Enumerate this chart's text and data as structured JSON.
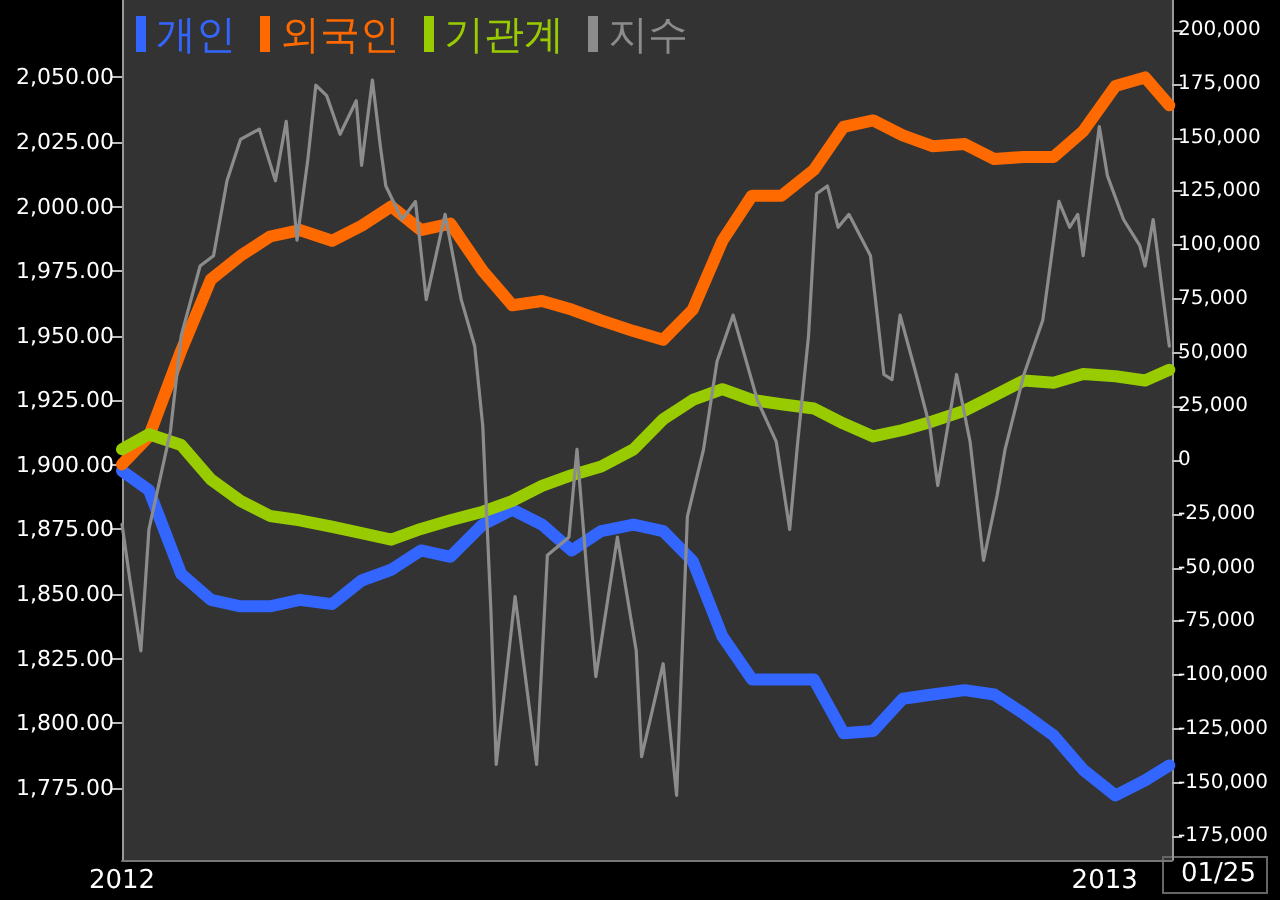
{
  "chart_data": {
    "type": "line",
    "x": [
      "2012-01-02",
      "2012-01-12",
      "2012-01-24",
      "2012-02-04",
      "2012-02-15",
      "2012-02-26",
      "2012-03-08",
      "2012-03-20",
      "2012-03-31",
      "2012-04-11",
      "2012-04-22",
      "2012-05-03",
      "2012-05-15",
      "2012-05-26",
      "2012-06-06",
      "2012-06-17",
      "2012-06-28",
      "2012-07-10",
      "2012-07-21",
      "2012-08-01",
      "2012-08-12",
      "2012-08-23",
      "2012-09-03",
      "2012-09-15",
      "2012-09-26",
      "2012-10-07",
      "2012-10-18",
      "2012-10-29",
      "2012-11-10",
      "2012-11-21",
      "2012-12-02",
      "2012-12-13",
      "2012-12-24",
      "2013-01-05",
      "2013-01-16",
      "2013-01-25"
    ],
    "series": [
      {
        "name": "개인",
        "color": "#3366ff",
        "axis": "y2",
        "values": [
          -5000,
          -14000,
          -53000,
          -65000,
          -68000,
          -68000,
          -65000,
          -67000,
          -56000,
          -51000,
          -42000,
          -45000,
          -30000,
          -23000,
          -30000,
          -42000,
          -33000,
          -30000,
          -33000,
          -47000,
          -82000,
          -102000,
          -102000,
          -102000,
          -127000,
          -126000,
          -111000,
          -109000,
          -107000,
          -109000,
          -118000,
          -128000,
          -144000,
          -156000,
          -149000,
          -142000
        ]
      },
      {
        "name": "외국인",
        "color": "#ff6a00",
        "axis": "y2",
        "values": [
          -2000,
          11000,
          51000,
          84000,
          95000,
          104000,
          107000,
          102000,
          109000,
          118000,
          107000,
          110000,
          88000,
          72000,
          74000,
          70000,
          65000,
          60000,
          56000,
          70000,
          102000,
          123000,
          123000,
          135000,
          155000,
          158000,
          151000,
          146000,
          147000,
          140000,
          141000,
          141000,
          153000,
          174000,
          178000,
          165000
        ]
      },
      {
        "name": "기관계",
        "color": "#99cc00",
        "axis": "y2",
        "values": [
          5000,
          12000,
          7000,
          -9000,
          -19000,
          -26000,
          -28000,
          -31000,
          -34000,
          -37000,
          -32000,
          -28000,
          -24000,
          -19000,
          -12000,
          -7000,
          -3000,
          5000,
          19000,
          28000,
          33000,
          28000,
          26000,
          24000,
          17000,
          11000,
          14000,
          18000,
          23000,
          30000,
          37000,
          36000,
          40000,
          39000,
          37000,
          42000
        ]
      },
      {
        "name": "지수",
        "color": "#8c8c8c",
        "axis": "y",
        "x": [
          "2012-01-02",
          "2012-01-05",
          "2012-01-09",
          "2012-01-12",
          "2012-01-16",
          "2012-01-20",
          "2012-01-24",
          "2012-01-31",
          "2012-02-05",
          "2012-02-10",
          "2012-02-15",
          "2012-02-22",
          "2012-02-28",
          "2012-03-03",
          "2012-03-07",
          "2012-03-11",
          "2012-03-14",
          "2012-03-18",
          "2012-03-23",
          "2012-03-29",
          "2012-03-31",
          "2012-04-04",
          "2012-04-07",
          "2012-04-09",
          "2012-04-15",
          "2012-04-20",
          "2012-04-24",
          "2012-05-01",
          "2012-05-07",
          "2012-05-12",
          "2012-05-15",
          "2012-05-18",
          "2012-05-20",
          "2012-05-27",
          "2012-06-04",
          "2012-06-08",
          "2012-06-16",
          "2012-06-19",
          "2012-06-23",
          "2012-06-26",
          "2012-07-04",
          "2012-07-11",
          "2012-07-13",
          "2012-07-21",
          "2012-07-26",
          "2012-07-30",
          "2012-08-05",
          "2012-08-10",
          "2012-08-16",
          "2012-08-25",
          "2012-09-01",
          "2012-09-06",
          "2012-09-09",
          "2012-09-13",
          "2012-09-16",
          "2012-09-20",
          "2012-09-24",
          "2012-09-28",
          "2012-10-06",
          "2012-10-11",
          "2012-10-14",
          "2012-10-17",
          "2012-10-23",
          "2012-10-28",
          "2012-10-31",
          "2012-11-07",
          "2012-11-12",
          "2012-11-17",
          "2012-11-22",
          "2012-11-25",
          "2012-12-02",
          "2012-12-09",
          "2012-12-15",
          "2012-12-19",
          "2012-12-22",
          "2012-12-24",
          "2012-12-30",
          "2013-01-02",
          "2013-01-08",
          "2013-01-14",
          "2013-01-16",
          "2013-01-19",
          "2013-01-25"
        ],
        "values": [
          1877,
          1855,
          1828,
          1875,
          1894,
          1913,
          1950,
          1977,
          1981,
          2010,
          2026,
          2030,
          2010,
          2033,
          1987,
          2018,
          2047,
          2043,
          2028,
          2041,
          2016,
          2049,
          2023,
          2008,
          1995,
          2002,
          1964,
          1997,
          1964,
          1946,
          1915,
          1844,
          1784,
          1849,
          1784,
          1865,
          1872,
          1906,
          1854,
          1818,
          1872,
          1828,
          1787,
          1823,
          1772,
          1880,
          1906,
          1940,
          1958,
          1925,
          1909,
          1875,
          1909,
          1950,
          2005,
          2008,
          1992,
          1997,
          1981,
          1935,
          1933,
          1958,
          1935,
          1915,
          1892,
          1935,
          1909,
          1863,
          1888,
          1906,
          1935,
          1956,
          2002,
          1992,
          1997,
          1981,
          2031,
          2012,
          1995,
          1985,
          1977,
          1995,
          1946
        ]
      }
    ],
    "xlim": [
      "2012-01-02",
      "2013-01-26"
    ],
    "xticks": [
      {
        "value": "2012-01-02",
        "label": "2012"
      },
      {
        "value": "2013-01-01",
        "label": "2013"
      }
    ],
    "ylim": [
      1747,
      2080
    ],
    "yticks": [
      {
        "value": 1775,
        "label": "1,775.00"
      },
      {
        "value": 1800,
        "label": "1,800.00"
      },
      {
        "value": 1825,
        "label": "1,825.00"
      },
      {
        "value": 1850,
        "label": "1,850.00"
      },
      {
        "value": 1875,
        "label": "1,875.00"
      },
      {
        "value": 1900,
        "label": "1,900.00"
      },
      {
        "value": 1925,
        "label": "1,925.00"
      },
      {
        "value": 1950,
        "label": "1,950.00"
      },
      {
        "value": 1975,
        "label": "1,975.00"
      },
      {
        "value": 2000,
        "label": "2,000.00"
      },
      {
        "value": 2025,
        "label": "2,025.00"
      },
      {
        "value": 2050,
        "label": "2,050.00"
      }
    ],
    "y2lim": [
      -186000,
      214000
    ],
    "y2ticks": [
      {
        "value": -175000,
        "label": "-175,000"
      },
      {
        "value": -150000,
        "label": "-150,000"
      },
      {
        "value": -125000,
        "label": "-125,000"
      },
      {
        "value": -100000,
        "label": "-100,000"
      },
      {
        "value": -75000,
        "label": "-75,000"
      },
      {
        "value": -50000,
        "label": "-50,000"
      },
      {
        "value": -25000,
        "label": "-25,000"
      },
      {
        "value": 0,
        "label": "0"
      },
      {
        "value": 25000,
        "label": "25,000"
      },
      {
        "value": 50000,
        "label": "50,000"
      },
      {
        "value": 75000,
        "label": "75,000"
      },
      {
        "value": 100000,
        "label": "100,000"
      },
      {
        "value": 125000,
        "label": "125,000"
      },
      {
        "value": 150000,
        "label": "150,000"
      },
      {
        "value": 175000,
        "label": "175,000"
      },
      {
        "value": 200000,
        "label": "200,000"
      }
    ],
    "annotations": [
      "01/25"
    ],
    "legend": "top left",
    "marker": "none"
  }
}
